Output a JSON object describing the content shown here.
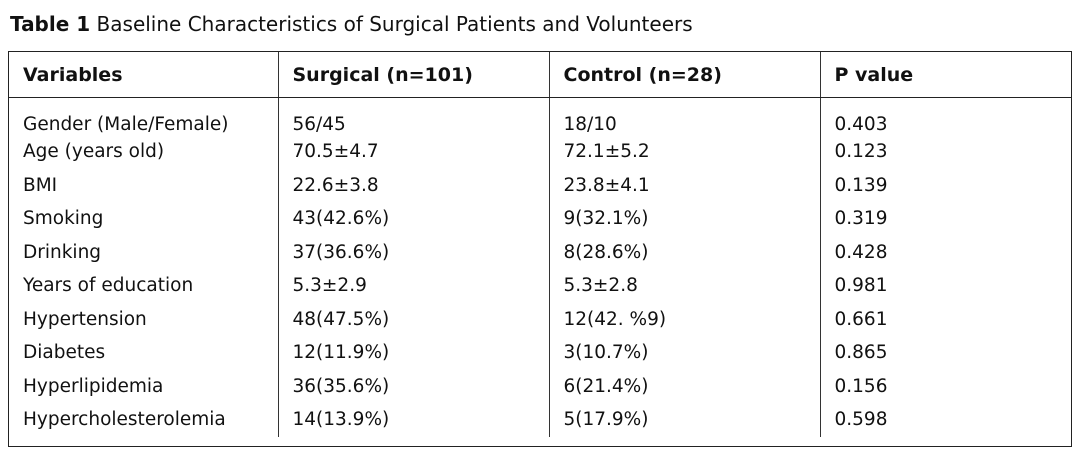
{
  "caption": {
    "label": "Table 1",
    "title": "Baseline Characteristics of Surgical Patients and Volunteers"
  },
  "table": {
    "headers": [
      "Variables",
      "Surgical (n=101)",
      "Control (n=28)",
      "P value"
    ],
    "rows": [
      [
        "Gender (Male/Female)",
        "56/45",
        "18/10",
        "0.403"
      ],
      [
        "Age (years old)",
        "70.5±4.7",
        "72.1±5.2",
        "0.123"
      ],
      [
        "BMI",
        "22.6±3.8",
        "23.8±4.1",
        "0.139"
      ],
      [
        "Smoking",
        "43(42.6%)",
        "9(32.1%)",
        "0.319"
      ],
      [
        "Drinking",
        "37(36.6%)",
        "8(28.6%)",
        "0.428"
      ],
      [
        "Years of education",
        "5.3±2.9",
        "5.3±2.8",
        "0.981"
      ],
      [
        "Hypertension",
        "48(47.5%)",
        "12(42. %9)",
        "0.661"
      ],
      [
        "Diabetes",
        "12(11.9%)",
        "3(10.7%)",
        "0.865"
      ],
      [
        "Hyperlipidemia",
        "36(35.6%)",
        "6(21.4%)",
        "0.156"
      ],
      [
        "Hypercholesterolemia",
        "14(13.9%)",
        "5(17.9%)",
        "0.598"
      ]
    ]
  }
}
